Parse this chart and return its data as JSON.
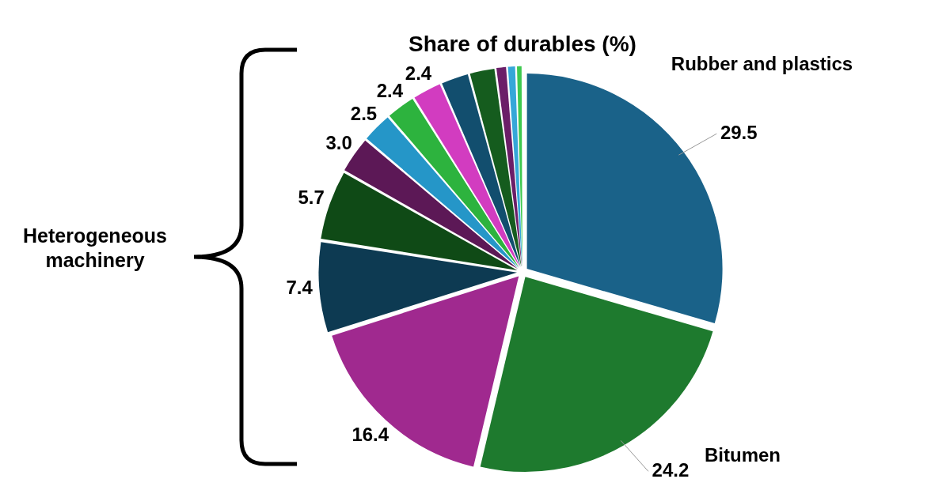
{
  "chart_data": {
    "type": "pie",
    "title": "Share of durables (%)",
    "categories": [
      "Rubber and plastics",
      "Bitumen",
      null,
      null,
      null,
      null,
      null,
      null,
      null,
      null,
      null,
      null,
      null,
      null
    ],
    "values": [
      29.5,
      24.2,
      16.4,
      7.4,
      5.7,
      3.0,
      2.5,
      2.4,
      2.4,
      2.3,
      2.1,
      0.9,
      0.7,
      0.5
    ],
    "value_labels": [
      "29.5",
      "24.2",
      "16.4",
      "7.4",
      "5.7",
      "3.0",
      "2.5",
      "2.4",
      "2.4",
      null,
      null,
      null,
      null,
      null
    ],
    "colors": [
      "#1a6289",
      "#1e7a2e",
      "#a0298f",
      "#0d3a52",
      "#0f4a16",
      "#5c1856",
      "#2596c8",
      "#2db33e",
      "#d23cc0",
      "#124e6e",
      "#155c1e",
      "#6b1e68",
      "#35a7d8",
      "#3ec94f"
    ],
    "annotations": [
      "Heterogeneous machinery"
    ],
    "legend": false
  }
}
